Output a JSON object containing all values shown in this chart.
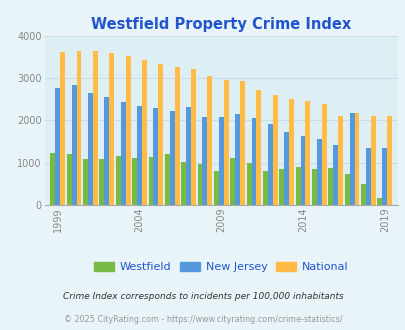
{
  "title": "Westfield Property Crime Index",
  "years": [
    1999,
    2000,
    2001,
    2002,
    2003,
    2004,
    2005,
    2006,
    2007,
    2008,
    2009,
    2010,
    2011,
    2012,
    2013,
    2014,
    2015,
    2016,
    2017,
    2018,
    2019
  ],
  "westfield": [
    1220,
    1200,
    1090,
    1090,
    1150,
    1100,
    1140,
    1200,
    1010,
    970,
    810,
    1100,
    1000,
    810,
    850,
    900,
    840,
    870,
    720,
    490,
    150
  ],
  "new_jersey": [
    2780,
    2840,
    2650,
    2550,
    2450,
    2350,
    2300,
    2220,
    2310,
    2090,
    2090,
    2160,
    2070,
    1910,
    1720,
    1620,
    1560,
    1420,
    2180,
    1350,
    1340
  ],
  "national": [
    3620,
    3660,
    3640,
    3600,
    3520,
    3440,
    3330,
    3280,
    3230,
    3050,
    2960,
    2930,
    2730,
    2610,
    2500,
    2460,
    2380,
    2100,
    2170,
    2100,
    2100
  ],
  "westfield_color": "#77bb44",
  "nj_color": "#5599dd",
  "national_color": "#ffbb44",
  "bg_color": "#e8f4f8",
  "plot_bg": "#ddeef5",
  "tick_color": "#888888",
  "title_color": "#2255cc",
  "grid_color": "#c8dde8",
  "ylim": [
    0,
    4000
  ],
  "yticks": [
    0,
    1000,
    2000,
    3000,
    4000
  ],
  "footnote1": "Crime Index corresponds to incidents per 100,000 inhabitants",
  "footnote2": "© 2025 CityRating.com - https://www.cityrating.com/crime-statistics/",
  "legend_labels": [
    "Westfield",
    "New Jersey",
    "National"
  ],
  "xtick_years": [
    1999,
    2004,
    2009,
    2014,
    2019
  ]
}
